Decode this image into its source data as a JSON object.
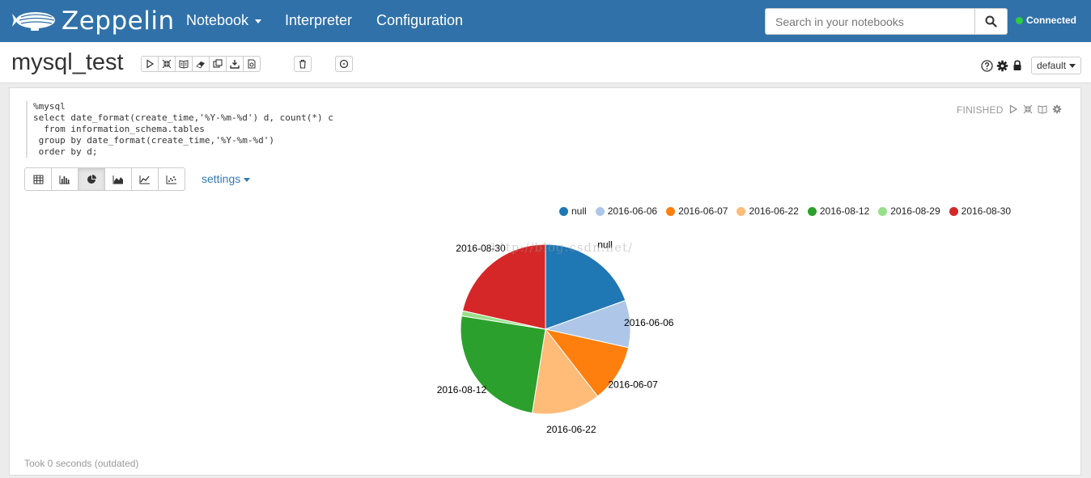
{
  "navbar": {
    "brand": "Zeppelin",
    "menu": [
      {
        "label": "Notebook",
        "has_caret": true
      },
      {
        "label": "Interpreter",
        "has_caret": false
      },
      {
        "label": "Configuration",
        "has_caret": false
      }
    ],
    "search_placeholder": "Search in your notebooks",
    "connection_status": "Connected",
    "connection_color": "#2ecc40",
    "bar_color": "#3071a9"
  },
  "header": {
    "note_title": "mysql_test",
    "toolbar_icons": [
      "run-all-icon",
      "hide-code-icon",
      "hide-output-icon",
      "clear-output-icon",
      "clone-icon",
      "export-icon",
      "version-icon"
    ],
    "delete_icon": "trash-icon",
    "schedule_icon": "clock-icon",
    "right_icons": [
      "help-icon",
      "gear-icon",
      "lock-icon"
    ],
    "interpreter_mode": "default"
  },
  "paragraph": {
    "code_lines": [
      "%mysql",
      "select date_format(create_time,'%Y-%m-%d') d, count(*) c",
      "  from information_schema.tables",
      " group by date_format(create_time,'%Y-%m-%d')",
      " order by d;"
    ],
    "status": "FINISHED",
    "status_icons": [
      "run-icon",
      "collapse-icon",
      "output-toggle-icon",
      "settings-icon"
    ],
    "viz_buttons": [
      "table-icon",
      "bar-chart-icon",
      "pie-chart-icon",
      "area-chart-icon",
      "line-chart-icon",
      "scatter-chart-icon"
    ],
    "active_viz": "pie-chart-icon",
    "settings_label": "settings",
    "watermark": "http://blog.csdn.net/",
    "footer": "Took 0 seconds (outdated)"
  },
  "chart_data": {
    "type": "pie",
    "legend_position": "top-right",
    "slices": [
      {
        "label": "null",
        "value": 19.5,
        "color": "#1f77b4"
      },
      {
        "label": "2016-06-06",
        "value": 9,
        "color": "#aec7e8"
      },
      {
        "label": "2016-06-07",
        "value": 11,
        "color": "#ff7f0e"
      },
      {
        "label": "2016-06-22",
        "value": 13,
        "color": "#ffbb78"
      },
      {
        "label": "2016-08-12",
        "value": 25,
        "color": "#2ca02c"
      },
      {
        "label": "2016-08-29",
        "value": 1,
        "color": "#98df8a"
      },
      {
        "label": "2016-08-30",
        "value": 21.5,
        "color": "#d62728"
      }
    ]
  }
}
